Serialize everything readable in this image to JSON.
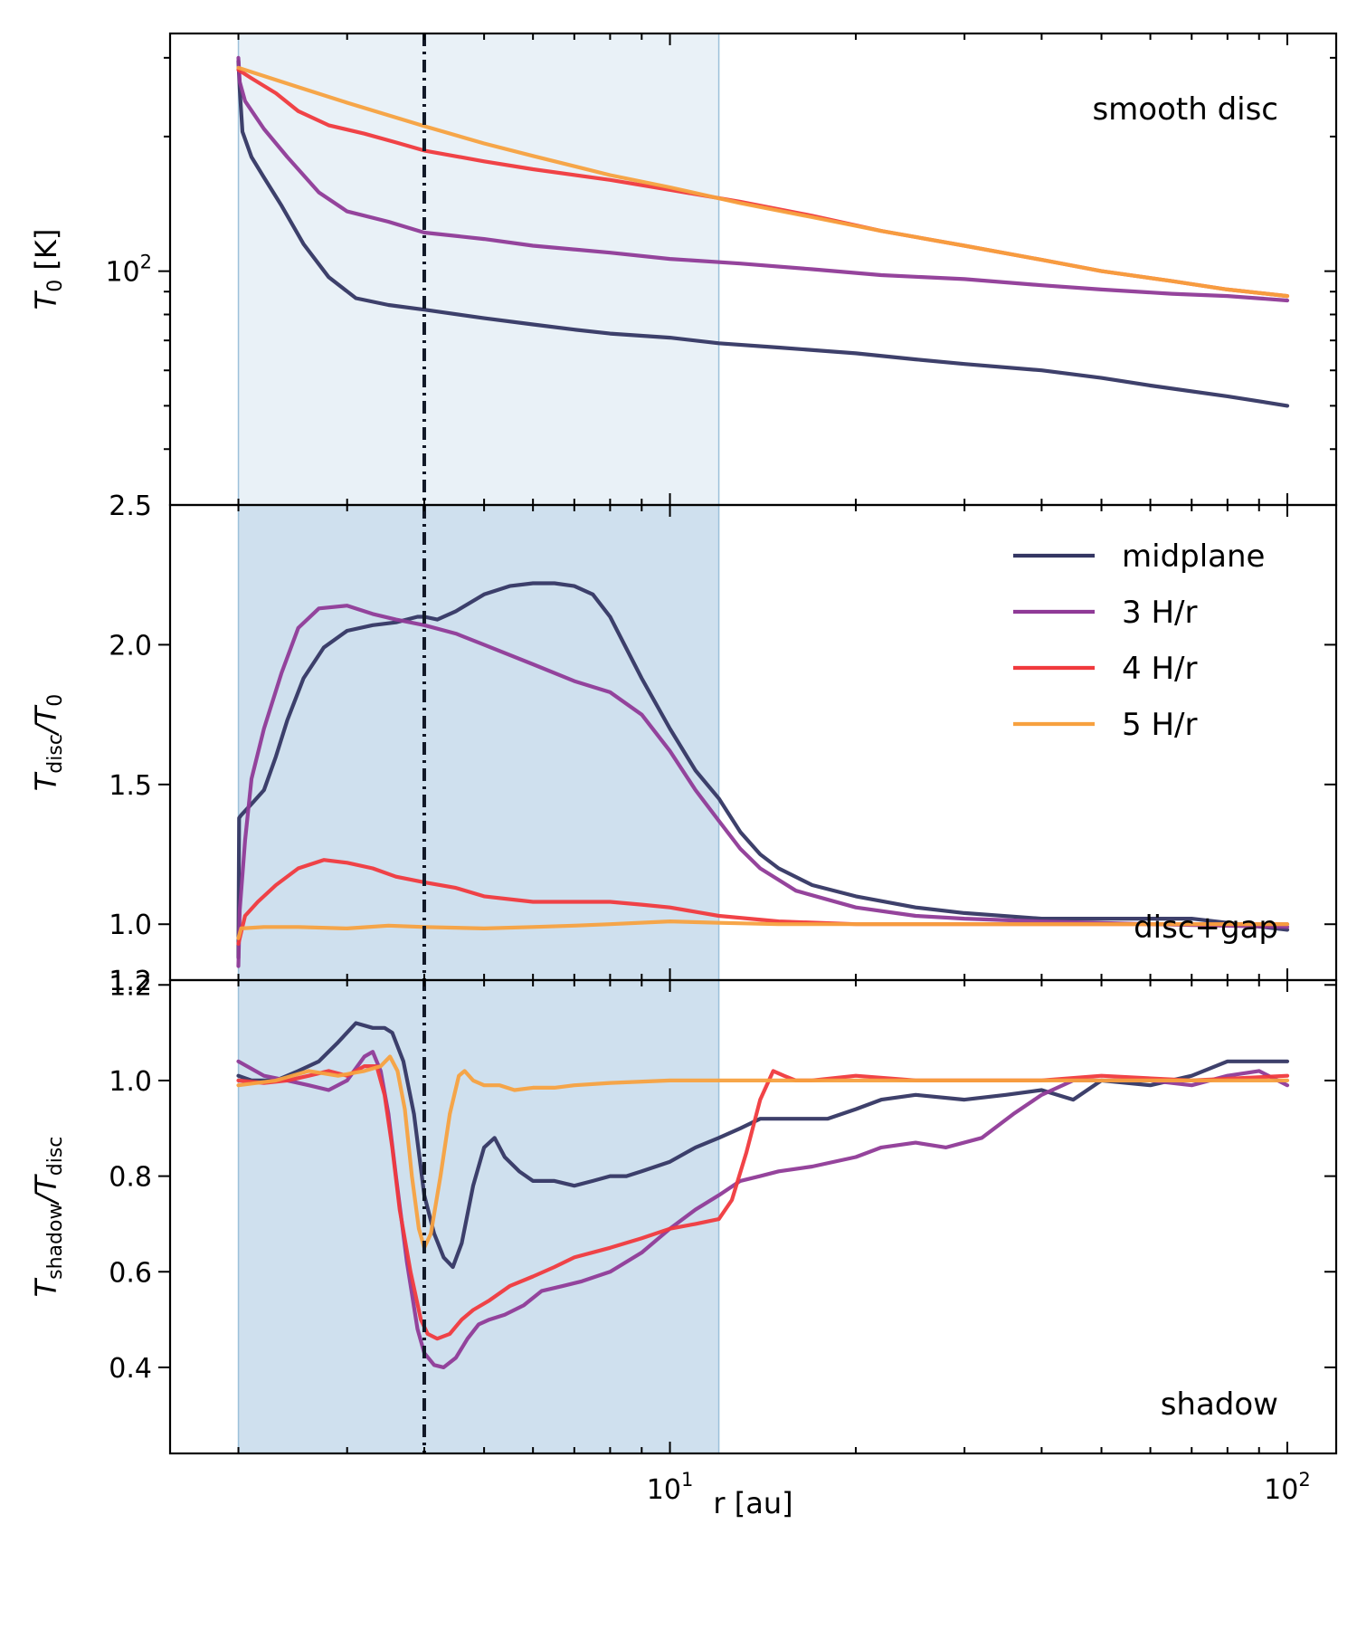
{
  "chart_data": {
    "type": "line",
    "xscale": "log",
    "xlim": [
      1.55,
      120
    ],
    "xlabel": "r [au]",
    "x_ticklabels": [
      {
        "base": "10",
        "exp": "1",
        "value": 10
      },
      {
        "base": "10",
        "exp": "2",
        "value": 100
      }
    ],
    "vertical_line": {
      "x": 4.0,
      "style": "dash-dot",
      "color": "#111827"
    },
    "shaded_regions": [
      {
        "x": [
          2.0,
          12.0
        ],
        "color": "#cfe0ee"
      }
    ],
    "legend": {
      "placement": "upper-right of middle panel",
      "entries": [
        {
          "label": "midplane",
          "color": "#343663"
        },
        {
          "label": "3 H/r",
          "color": "#8f3a97"
        },
        {
          "label": "4 H/r",
          "color": "#f0393d"
        },
        {
          "label": "5 H/r",
          "color": "#f7a13f"
        }
      ]
    },
    "panels": [
      {
        "id": "top",
        "annotation": "smooth disc",
        "yscale": "log",
        "ylim": [
          30,
          340
        ],
        "ylabel_main": "T",
        "ylabel_sub": "0",
        "ylabel_unit": " [K]",
        "y_ticklabels": [
          {
            "base": "10",
            "exp": "2",
            "value": 100
          }
        ],
        "bottom_label": "2.5",
        "shade_alpha": 0.45,
        "series": [
          {
            "name": "midplane",
            "color": "#343663",
            "x": [
              2.0,
              2.01,
              2.03,
              2.1,
              2.2,
              2.35,
              2.55,
              2.8,
              3.1,
              3.5,
              4.0,
              5.0,
              6.0,
              7.0,
              8.0,
              10.0,
              12.0,
              15.0,
              20.0,
              25.0,
              30.0,
              40.0,
              50.0,
              60.0,
              80.0,
              100.0
            ],
            "y": [
              295,
              255,
              205,
              180,
              162,
              140,
              115,
              97,
              87,
              84,
              82,
              78.5,
              76,
              74,
              72.5,
              71,
              69,
              67.5,
              65.5,
              63.5,
              62,
              60,
              57.7,
              55.5,
              52.5,
              50
            ]
          },
          {
            "name": "3 H/r",
            "color": "#8f3a97",
            "x": [
              2.0,
              2.01,
              2.05,
              2.2,
              2.4,
              2.7,
              3.0,
              3.5,
              4.0,
              5.0,
              6.0,
              8.0,
              10.0,
              13.0,
              17.0,
              22.0,
              30.0,
              40.0,
              50.0,
              65.0,
              80.0,
              100.0
            ],
            "y": [
              300,
              265,
              240,
              208,
              180,
              150,
              136,
              129,
              122,
              118,
              114,
              110,
              106.5,
              104,
              101,
              98,
              96,
              93,
              91,
              89,
              88,
              86
            ]
          },
          {
            "name": "4 H/r",
            "color": "#f0393d",
            "x": [
              2.0,
              2.1,
              2.3,
              2.5,
              2.8,
              3.2,
              3.6,
              4.0,
              5.0,
              6.0,
              8.0,
              10.0,
              13.0,
              17.0,
              22.0,
              30.0,
              40.0,
              50.0,
              65.0,
              80.0,
              100.0
            ],
            "y": [
              282,
              270,
              250,
              228,
              212,
              203,
              194,
              186,
              176,
              169,
              160,
              152,
              143,
              133,
              123,
              114,
              106,
              100,
              95,
              91,
              88
            ]
          },
          {
            "name": "5 H/r",
            "color": "#f7a13f",
            "x": [
              2.0,
              2.5,
              3.0,
              4.0,
              5.0,
              6.0,
              8.0,
              10.0,
              13.0,
              17.0,
              22.0,
              30.0,
              40.0,
              50.0,
              65.0,
              80.0,
              100.0
            ],
            "y": [
              285,
              258,
              238,
              211,
              193,
              181,
              164,
              154,
              142,
              132,
              123,
              114,
              106,
              100,
              95,
              91,
              88
            ]
          }
        ]
      },
      {
        "id": "middle",
        "annotation": "disc+gap",
        "yscale": "linear",
        "ylim": [
          0.8,
          2.5
        ],
        "ylabel_main": "T",
        "ylabel_sub": "disc",
        "ylabel_tail": "/T",
        "ylabel_sub2": "0",
        "y_ticks": [
          1.0,
          1.5,
          2.0
        ],
        "y_ticklabels": [
          "1.0",
          "1.5",
          "2.0"
        ],
        "bottom_label": "1.2",
        "shade_alpha": 1.0,
        "series": [
          {
            "name": "midplane",
            "color": "#343663",
            "x": [
              2.0,
              2.005,
              2.02,
              2.1,
              2.2,
              2.3,
              2.4,
              2.55,
              2.75,
              3.0,
              3.3,
              3.6,
              3.9,
              4.0,
              4.2,
              4.5,
              5.0,
              5.5,
              6.0,
              6.5,
              7.0,
              7.5,
              8.0,
              9.0,
              10.0,
              11.0,
              12.0,
              13.0,
              14.0,
              15.0,
              17.0,
              20.0,
              25.0,
              30.0,
              40.0,
              50.0,
              70.0,
              100.0
            ],
            "y": [
              0.88,
              1.38,
              1.39,
              1.43,
              1.48,
              1.6,
              1.73,
              1.88,
              1.99,
              2.05,
              2.07,
              2.08,
              2.1,
              2.1,
              2.09,
              2.12,
              2.18,
              2.21,
              2.22,
              2.22,
              2.21,
              2.18,
              2.1,
              1.88,
              1.7,
              1.55,
              1.45,
              1.33,
              1.25,
              1.2,
              1.14,
              1.1,
              1.06,
              1.04,
              1.02,
              1.02,
              1.02,
              0.98
            ]
          },
          {
            "name": "3 H/r",
            "color": "#8f3a97",
            "x": [
              2.0,
              2.01,
              2.05,
              2.1,
              2.2,
              2.35,
              2.5,
              2.7,
              3.0,
              3.3,
              3.6,
              4.0,
              4.5,
              5.0,
              6.0,
              7.0,
              8.0,
              9.0,
              10.0,
              11.0,
              12.0,
              13.0,
              14.0,
              16.0,
              20.0,
              25.0,
              30.0,
              40.0,
              60.0,
              100.0
            ],
            "y": [
              0.85,
              1.05,
              1.3,
              1.52,
              1.7,
              1.9,
              2.06,
              2.13,
              2.14,
              2.11,
              2.09,
              2.07,
              2.04,
              2.0,
              1.93,
              1.87,
              1.83,
              1.75,
              1.62,
              1.48,
              1.37,
              1.27,
              1.2,
              1.12,
              1.06,
              1.03,
              1.02,
              1.01,
              1.0,
              0.99
            ]
          },
          {
            "name": "4 H/r",
            "color": "#f0393d",
            "x": [
              2.0,
              2.05,
              2.15,
              2.3,
              2.5,
              2.75,
              3.0,
              3.3,
              3.6,
              4.0,
              4.5,
              5.0,
              6.0,
              7.0,
              8.0,
              9.0,
              10.0,
              12.0,
              15.0,
              20.0,
              30.0,
              50.0,
              100.0
            ],
            "y": [
              0.93,
              1.03,
              1.08,
              1.14,
              1.2,
              1.23,
              1.22,
              1.2,
              1.17,
              1.15,
              1.13,
              1.1,
              1.08,
              1.08,
              1.08,
              1.07,
              1.06,
              1.03,
              1.01,
              1.0,
              1.0,
              1.0,
              1.0
            ]
          },
          {
            "name": "5 H/r",
            "color": "#f7a13f",
            "x": [
              2.0,
              2.02,
              2.2,
              2.5,
              3.0,
              3.5,
              4.0,
              5.0,
              6.0,
              7.0,
              8.0,
              10.0,
              12.0,
              15.0,
              20.0,
              30.0,
              50.0,
              100.0
            ],
            "y": [
              0.95,
              0.985,
              0.99,
              0.99,
              0.985,
              0.995,
              0.99,
              0.985,
              0.99,
              0.995,
              1.0,
              1.01,
              1.005,
              1.0,
              1.0,
              1.0,
              1.0,
              1.0
            ]
          }
        ]
      },
      {
        "id": "bottom",
        "annotation": "shadow",
        "yscale": "linear",
        "ylim": [
          0.22,
          1.21
        ],
        "ylabel_main": "T",
        "ylabel_sub": "shadow",
        "ylabel_tail": "/T",
        "ylabel_sub2": "disc",
        "y_ticks": [
          0.4,
          0.6,
          0.8,
          1.0,
          1.2
        ],
        "y_ticklabels": [
          "0.4",
          "0.6",
          "0.8",
          "1.0",
          "1.2"
        ],
        "shade_alpha": 1.0,
        "series": [
          {
            "name": "midplane",
            "color": "#343663",
            "x": [
              2.0,
              2.1,
              2.3,
              2.5,
              2.7,
              2.9,
              3.1,
              3.3,
              3.45,
              3.55,
              3.7,
              3.85,
              4.0,
              4.15,
              4.3,
              4.45,
              4.6,
              4.8,
              5.0,
              5.2,
              5.4,
              5.7,
              6.0,
              6.5,
              7.0,
              7.5,
              8.0,
              8.5,
              9.0,
              10.0,
              11.0,
              12.0,
              13.0,
              14.0,
              16.0,
              18.0,
              20.0,
              22.0,
              25.0,
              30.0,
              35.0,
              40.0,
              45.0,
              50.0,
              60.0,
              70.0,
              80.0,
              90.0,
              100.0
            ],
            "y": [
              1.01,
              1.0,
              1.0,
              1.02,
              1.04,
              1.08,
              1.12,
              1.11,
              1.11,
              1.1,
              1.04,
              0.93,
              0.76,
              0.68,
              0.63,
              0.61,
              0.66,
              0.78,
              0.86,
              0.88,
              0.84,
              0.81,
              0.79,
              0.79,
              0.78,
              0.79,
              0.8,
              0.8,
              0.81,
              0.83,
              0.86,
              0.88,
              0.9,
              0.92,
              0.92,
              0.92,
              0.94,
              0.96,
              0.97,
              0.96,
              0.97,
              0.98,
              0.96,
              1.0,
              0.99,
              1.01,
              1.04,
              1.04,
              1.04
            ]
          },
          {
            "name": "3 H/r",
            "color": "#8f3a97",
            "x": [
              2.0,
              2.2,
              2.4,
              2.6,
              2.8,
              3.0,
              3.2,
              3.3,
              3.4,
              3.5,
              3.6,
              3.75,
              3.9,
              4.0,
              4.15,
              4.3,
              4.5,
              4.7,
              4.9,
              5.1,
              5.4,
              5.8,
              6.2,
              6.7,
              7.2,
              8.0,
              9.0,
              10.0,
              11.0,
              12.0,
              13.0,
              14.0,
              15.0,
              17.0,
              20.0,
              22.0,
              25.0,
              28.0,
              32.0,
              36.0,
              40.0,
              45.0,
              50.0,
              60.0,
              70.0,
              80.0,
              90.0,
              100.0
            ],
            "y": [
              1.04,
              1.01,
              1.0,
              0.99,
              0.98,
              1.0,
              1.05,
              1.06,
              1.02,
              0.93,
              0.8,
              0.62,
              0.48,
              0.43,
              0.405,
              0.4,
              0.42,
              0.46,
              0.49,
              0.5,
              0.51,
              0.53,
              0.56,
              0.57,
              0.58,
              0.6,
              0.64,
              0.69,
              0.73,
              0.76,
              0.79,
              0.8,
              0.81,
              0.82,
              0.84,
              0.86,
              0.87,
              0.86,
              0.88,
              0.93,
              0.97,
              1.0,
              1.0,
              1.0,
              0.99,
              1.01,
              1.02,
              0.99
            ]
          },
          {
            "name": "4 H/r",
            "color": "#f0393d",
            "x": [
              2.0,
              2.2,
              2.4,
              2.6,
              2.8,
              3.0,
              3.2,
              3.35,
              3.45,
              3.55,
              3.65,
              3.8,
              3.95,
              4.05,
              4.2,
              4.4,
              4.6,
              4.8,
              5.1,
              5.5,
              6.0,
              6.5,
              7.0,
              8.0,
              9.0,
              10.0,
              11.0,
              12.0,
              12.6,
              13.3,
              14.0,
              14.7,
              15.3,
              16.0,
              17.0,
              20.0,
              25.0,
              30.0,
              40.0,
              50.0,
              70.0,
              100.0
            ],
            "y": [
              1.0,
              0.995,
              1.0,
              1.01,
              1.02,
              1.01,
              1.03,
              1.03,
              0.97,
              0.86,
              0.73,
              0.6,
              0.5,
              0.47,
              0.46,
              0.47,
              0.5,
              0.52,
              0.54,
              0.57,
              0.59,
              0.61,
              0.63,
              0.65,
              0.67,
              0.69,
              0.7,
              0.71,
              0.75,
              0.85,
              0.96,
              1.02,
              1.01,
              1.0,
              1.0,
              1.01,
              1.0,
              1.0,
              1.0,
              1.01,
              1.0,
              1.01
            ]
          },
          {
            "name": "5 H/r",
            "color": "#f7a13f",
            "x": [
              2.0,
              2.3,
              2.6,
              2.9,
              3.2,
              3.4,
              3.52,
              3.62,
              3.72,
              3.82,
              3.92,
              4.0,
              4.1,
              4.25,
              4.4,
              4.55,
              4.65,
              4.8,
              5.0,
              5.3,
              5.6,
              6.0,
              6.5,
              7.0,
              8.0,
              10.0,
              12.0,
              15.0,
              20.0,
              30.0,
              50.0,
              100.0
            ],
            "y": [
              0.99,
              1.0,
              1.02,
              1.01,
              1.02,
              1.03,
              1.05,
              1.02,
              0.94,
              0.8,
              0.69,
              0.65,
              0.68,
              0.8,
              0.93,
              1.01,
              1.02,
              1.0,
              0.99,
              0.99,
              0.98,
              0.985,
              0.985,
              0.99,
              0.995,
              1.0,
              1.0,
              1.0,
              1.0,
              1.0,
              1.0,
              1.0
            ]
          }
        ]
      }
    ]
  }
}
